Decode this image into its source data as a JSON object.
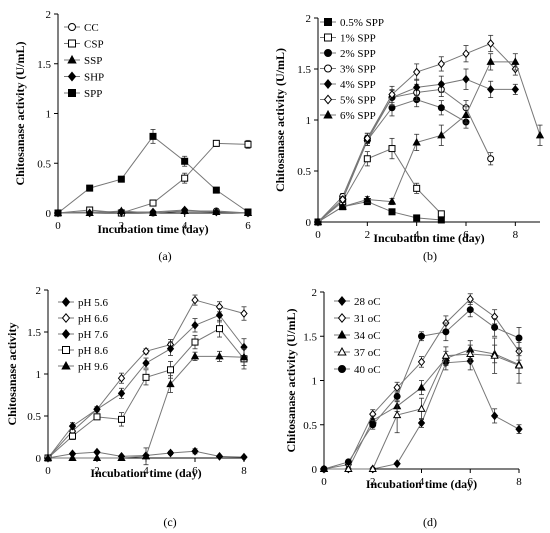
{
  "chart_data": [
    {
      "type": "line",
      "panel": "(a)",
      "xlabel": "Incubation time (day)",
      "ylabel": "Chitosanase activity (U/mL)",
      "xlim": [
        0,
        6
      ],
      "ylim": [
        0,
        2
      ],
      "xticks": [
        "0",
        "2",
        "4",
        "6"
      ],
      "yticks": [
        "0",
        "0.5",
        "1",
        "1.5",
        "2"
      ],
      "legend_position": "top-left",
      "series": [
        {
          "name": "CC",
          "marker": "circle",
          "fill": "open",
          "x": [
            0,
            1,
            2,
            3,
            4,
            5,
            6
          ],
          "y": [
            0,
            0.01,
            0.01,
            0,
            0.02,
            0.02,
            0
          ]
        },
        {
          "name": "CSP",
          "marker": "square",
          "fill": "open",
          "x": [
            0,
            1,
            2,
            3,
            4,
            5,
            6
          ],
          "y": [
            0,
            0.03,
            0,
            0.1,
            0.35,
            0.7,
            0.69
          ],
          "err": [
            0,
            0.02,
            0.01,
            0.03,
            0.05,
            0.03,
            0.04
          ]
        },
        {
          "name": "SSP",
          "marker": "triangle",
          "fill": "filled",
          "x": [
            0,
            1,
            2,
            3,
            4,
            5,
            6
          ],
          "y": [
            0,
            0,
            0.02,
            0,
            0.02,
            0.01,
            0
          ]
        },
        {
          "name": "SHP",
          "marker": "diamond",
          "fill": "filled",
          "x": [
            0,
            1,
            2,
            3,
            4,
            5,
            6
          ],
          "y": [
            0,
            0,
            0.01,
            0.01,
            0.03,
            0.01,
            0
          ]
        },
        {
          "name": "SPP",
          "marker": "square",
          "fill": "filled",
          "x": [
            0,
            1,
            2,
            3,
            4,
            5,
            6
          ],
          "y": [
            0,
            0.25,
            0.34,
            0.77,
            0.52,
            0.23,
            0.01
          ],
          "err": [
            0,
            0.02,
            0.02,
            0.07,
            0.05,
            0.01,
            0.01
          ]
        }
      ]
    },
    {
      "type": "line",
      "panel": "(b)",
      "xlabel": "Incubation time (day)",
      "ylabel": "Chitosanase activity (U/mL)",
      "xlim": [
        0,
        9
      ],
      "ylim": [
        0,
        2
      ],
      "xticks": [
        "0",
        "2",
        "4",
        "6",
        "8"
      ],
      "yticks": [
        "0",
        "0.5",
        "1",
        "1.5",
        "2"
      ],
      "legend_position": "top-left",
      "series": [
        {
          "name": "0.5% SPP",
          "marker": "square",
          "fill": "filled",
          "x": [
            0,
            1,
            2,
            3,
            4,
            5
          ],
          "y": [
            0,
            0.15,
            0.2,
            0.1,
            0.04,
            0.02
          ]
        },
        {
          "name": "1% SPP",
          "marker": "square",
          "fill": "open",
          "x": [
            0,
            1,
            2,
            3,
            4,
            5
          ],
          "y": [
            0,
            0.2,
            0.62,
            0.72,
            0.33,
            0.08
          ],
          "err": [
            0,
            0.03,
            0.07,
            0.1,
            0.05,
            0.02
          ]
        },
        {
          "name": "2% SPP",
          "marker": "circle",
          "fill": "filled",
          "x": [
            0,
            1,
            2,
            3,
            4,
            5,
            6
          ],
          "y": [
            0,
            0.22,
            0.8,
            1.12,
            1.2,
            1.12,
            0.98
          ],
          "err": [
            0,
            0.02,
            0.05,
            0.08,
            0.07,
            0.07,
            0.06
          ]
        },
        {
          "name": "3% SPP",
          "marker": "circle",
          "fill": "open",
          "x": [
            0,
            1,
            2,
            3,
            4,
            5,
            6,
            7
          ],
          "y": [
            0,
            0.25,
            0.82,
            1.22,
            1.27,
            1.3,
            1.12,
            0.62
          ],
          "err": [
            0,
            0.03,
            0.05,
            0.08,
            0.08,
            0.07,
            0.07,
            0.06
          ]
        },
        {
          "name": "4% SPP",
          "marker": "diamond",
          "fill": "filled",
          "x": [
            0,
            1,
            2,
            3,
            4,
            5,
            6,
            7,
            8
          ],
          "y": [
            0,
            0.22,
            0.8,
            1.22,
            1.32,
            1.35,
            1.4,
            1.3,
            1.3
          ],
          "err": [
            0,
            0.03,
            0.05,
            0.07,
            0.08,
            0.08,
            0.1,
            0.08,
            0.05
          ]
        },
        {
          "name": "5% SPP",
          "marker": "diamond",
          "fill": "open",
          "x": [
            0,
            1,
            2,
            3,
            4,
            5,
            6,
            7,
            8
          ],
          "y": [
            0,
            0.22,
            0.82,
            1.25,
            1.47,
            1.55,
            1.65,
            1.75,
            1.5
          ],
          "err": [
            0,
            0.02,
            0.05,
            0.08,
            0.08,
            0.07,
            0.08,
            0.08,
            0.06
          ]
        },
        {
          "name": "6% SPP",
          "marker": "triangle",
          "fill": "filled",
          "x": [
            0,
            1,
            2,
            3,
            4,
            5,
            6,
            7,
            8,
            9
          ],
          "y": [
            0,
            0.15,
            0.22,
            0.2,
            0.78,
            0.85,
            1.05,
            1.57,
            1.57,
            0.85
          ],
          "err": [
            0,
            0.02,
            0.03,
            0.03,
            0.08,
            0.1,
            0.08,
            0.08,
            0.08,
            0.1
          ]
        }
      ]
    },
    {
      "type": "line",
      "panel": "(c)",
      "xlabel": "Incubation time (day)",
      "ylabel": "Chitosanase activity",
      "xlim": [
        0,
        8
      ],
      "ylim": [
        0,
        2
      ],
      "xticks": [
        "0",
        "2",
        "4",
        "6",
        "8"
      ],
      "yticks": [
        "0",
        "0.5",
        "1",
        "1.5",
        "2"
      ],
      "legend_position": "top-left",
      "series": [
        {
          "name": "pH 5.6",
          "marker": "diamond",
          "fill": "filled",
          "x": [
            0,
            1,
            2,
            3,
            4,
            5,
            6,
            7,
            8
          ],
          "y": [
            0,
            0.05,
            0.07,
            0.02,
            0.03,
            0.06,
            0.08,
            0.02,
            0.01
          ],
          "err": [
            0,
            0.01,
            0.01,
            0.01,
            0.01,
            0.02,
            0.03,
            0.01,
            0.01
          ]
        },
        {
          "name": "pH 6.6",
          "marker": "diamond",
          "fill": "open",
          "x": [
            0,
            1,
            2,
            3,
            4,
            5,
            6,
            7,
            8
          ],
          "y": [
            0,
            0.32,
            0.58,
            0.95,
            1.27,
            1.35,
            1.88,
            1.8,
            1.72
          ],
          "err": [
            0,
            0.03,
            0.03,
            0.06,
            0.03,
            0.06,
            0.06,
            0.06,
            0.08
          ]
        },
        {
          "name": "pH 7.6",
          "marker": "diamond",
          "fill": "filled",
          "x": [
            0,
            1,
            2,
            3,
            4,
            5,
            6,
            7,
            8
          ],
          "y": [
            0,
            0.38,
            0.58,
            0.77,
            1.13,
            1.3,
            1.58,
            1.7,
            1.32
          ],
          "err": [
            0,
            0.04,
            0.03,
            0.06,
            0.06,
            0.08,
            0.08,
            0.08,
            0.1
          ]
        },
        {
          "name": "pH 8.6",
          "marker": "square",
          "fill": "open",
          "x": [
            0,
            1,
            2,
            3,
            4,
            5,
            6,
            7,
            8
          ],
          "y": [
            0,
            0.26,
            0.49,
            0.46,
            0.96,
            1.05,
            1.38,
            1.54,
            1.18
          ],
          "err": [
            0,
            0.04,
            0.03,
            0.08,
            0.09,
            0.1,
            0.08,
            0.1,
            0.12
          ]
        },
        {
          "name": "pH 9.6",
          "marker": "triangle",
          "fill": "filled",
          "x": [
            0,
            1,
            2,
            3,
            4,
            5,
            6,
            7,
            8
          ],
          "y": [
            0,
            0,
            0,
            0,
            0.02,
            0.88,
            1.21,
            1.21,
            1.2
          ],
          "err": [
            0,
            0,
            0,
            0,
            0.1,
            0.1,
            0.05,
            0.06,
            0.1
          ]
        }
      ]
    },
    {
      "type": "line",
      "panel": "(d)",
      "xlabel": "Incubation time (day)",
      "ylabel": "Chitosanase activity (U/mL)",
      "xlim": [
        0,
        8
      ],
      "ylim": [
        0,
        2
      ],
      "xticks": [
        "0",
        "2",
        "4",
        "6",
        "8"
      ],
      "yticks": [
        "0",
        "0.5",
        "1",
        "1.5",
        "2"
      ],
      "legend_position": "top-left",
      "series": [
        {
          "name": "28 oC",
          "marker": "diamond",
          "fill": "filled",
          "x": [
            0,
            1,
            2,
            3,
            4,
            5,
            6,
            7,
            8
          ],
          "y": [
            0,
            0,
            0,
            0.06,
            0.52,
            1.2,
            1.22,
            0.6,
            0.45
          ],
          "err": [
            0,
            0,
            0,
            0.01,
            0.05,
            0.08,
            0.1,
            0.08,
            0.05
          ]
        },
        {
          "name": "31 oC",
          "marker": "diamond",
          "fill": "open",
          "x": [
            0,
            1,
            2,
            3,
            4,
            5,
            6,
            7,
            8
          ],
          "y": [
            0,
            0.05,
            0.62,
            0.92,
            1.21,
            1.65,
            1.92,
            1.72,
            1.33
          ],
          "err": [
            0,
            0.02,
            0.05,
            0.06,
            0.06,
            0.08,
            0.06,
            0.08,
            0.1
          ]
        },
        {
          "name": "34 oC",
          "marker": "triangle",
          "fill": "filled",
          "x": [
            0,
            1,
            2,
            3,
            4,
            5,
            6,
            7,
            8
          ],
          "y": [
            0,
            0,
            0.55,
            0.71,
            0.92,
            1.25,
            1.35,
            1.3,
            1.18
          ],
          "err": [
            0,
            0,
            0.05,
            0.06,
            0.08,
            0.08,
            0.1,
            0.1,
            0.1
          ]
        },
        {
          "name": "37 oC",
          "marker": "triangle",
          "fill": "open",
          "x": [
            0,
            1,
            2,
            3,
            4,
            5,
            6,
            7,
            8
          ],
          "y": [
            0,
            0,
            0,
            0.61,
            0.68,
            1.28,
            1.3,
            1.28,
            1.17
          ],
          "err": [
            0,
            0,
            0,
            0.2,
            0.12,
            0.1,
            0.1,
            0.2,
            0.2
          ]
        },
        {
          "name": "40 oC",
          "marker": "circle",
          "fill": "filled",
          "x": [
            0,
            1,
            2,
            3,
            4,
            5,
            6,
            7,
            8
          ],
          "y": [
            0,
            0.08,
            0.5,
            0.82,
            1.5,
            1.55,
            1.8,
            1.6,
            1.48
          ],
          "err": [
            0,
            0.02,
            0.05,
            0.06,
            0.05,
            0.1,
            0.08,
            0.1,
            0.12
          ]
        }
      ]
    }
  ]
}
